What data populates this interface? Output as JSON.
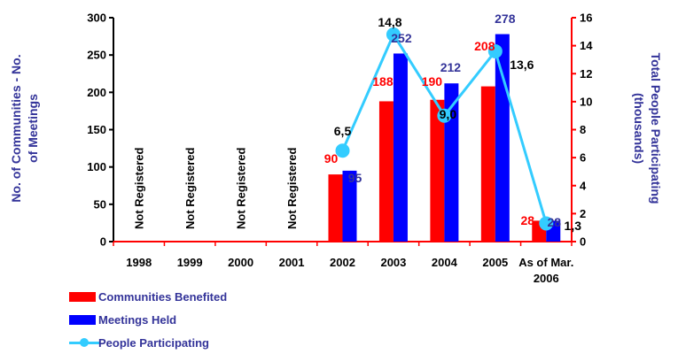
{
  "chart_data": {
    "type": "bar",
    "categories": [
      "1998",
      "1999",
      "2000",
      "2001",
      "2002",
      "2003",
      "2004",
      "2005",
      "As of Mar. 2006"
    ],
    "y_left": {
      "label": "No. of Communities - No. of Meetings",
      "ylim": [
        0,
        300
      ],
      "ticks": [
        "0",
        "50",
        "100",
        "150",
        "200",
        "250",
        "300"
      ]
    },
    "y_right": {
      "label": "Total People Participating (thousands)",
      "ylim": [
        0,
        16
      ],
      "ticks": [
        "0",
        "2",
        "4",
        "6",
        "8",
        "10",
        "12",
        "14",
        "16"
      ]
    },
    "not_registered_label": "Not Registered",
    "series": [
      {
        "name": "Communities Benefited",
        "type": "bar",
        "axis": "left",
        "color": "#ff0000",
        "values": [
          null,
          null,
          null,
          null,
          90,
          188,
          190,
          208,
          28
        ],
        "labels": [
          "",
          "",
          "",
          "",
          "90",
          "188",
          "190",
          "208",
          "28"
        ]
      },
      {
        "name": "Meetings Held",
        "type": "bar",
        "axis": "left",
        "color": "#0000ff",
        "values": [
          null,
          null,
          null,
          null,
          95,
          252,
          212,
          278,
          28
        ],
        "labels": [
          "",
          "",
          "",
          "",
          "95",
          "252",
          "212",
          "278",
          "28"
        ]
      },
      {
        "name": "People Participating",
        "type": "line",
        "axis": "right",
        "color": "#33ccff",
        "values": [
          null,
          null,
          null,
          null,
          6.5,
          14.8,
          9.0,
          13.6,
          1.3
        ],
        "labels": [
          "",
          "",
          "",
          "",
          "6,5",
          "14,8",
          "9,0",
          "13,6",
          "1,3"
        ]
      }
    ],
    "colors": {
      "axis_left": "#000000",
      "axis_right": "#ff0000",
      "axis_title": "#333399",
      "comm_label": "#ff0000",
      "meet_label": "#333399",
      "line_label": "#000000"
    },
    "legend_position": "bottom-left",
    "grid": false
  }
}
